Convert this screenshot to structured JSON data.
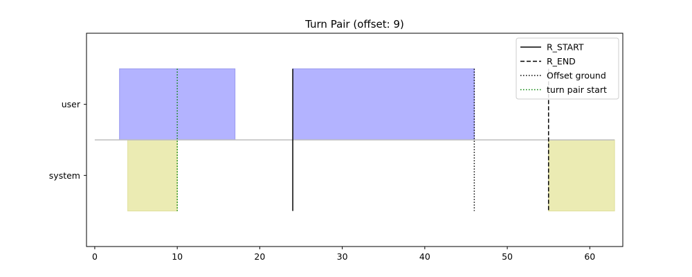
{
  "chart_data": {
    "type": "timeline",
    "title": "Turn Pair (offset: 9)",
    "xlabel": "",
    "ylabel": "",
    "xlim": [
      -1,
      64
    ],
    "xticks": [
      0,
      10,
      20,
      30,
      40,
      50,
      60
    ],
    "rows": [
      "user",
      "system"
    ],
    "baseline": 0,
    "segments": [
      {
        "row": "user",
        "start": 3,
        "end": 17,
        "color": "#b3b3ff",
        "edge": "#9999ee"
      },
      {
        "row": "user",
        "start": 24,
        "end": 46,
        "color": "#b3b3ff",
        "edge": "#9999ee"
      },
      {
        "row": "system",
        "start": 4,
        "end": 10,
        "color": "#ebebb3",
        "edge": "#dede99"
      },
      {
        "row": "system",
        "start": 55,
        "end": 63,
        "color": "#ebebb3",
        "edge": "#dede99"
      }
    ],
    "vlines": [
      {
        "name": "R_START",
        "x": 24,
        "ymin": -1,
        "ymax": 1,
        "color": "#000000",
        "style": "solid"
      },
      {
        "name": "R_END",
        "x": 55,
        "ymin": -1,
        "ymax": 1,
        "color": "#000000",
        "style": "dashed"
      },
      {
        "name": "Offset ground",
        "x": 46,
        "ymin": -1,
        "ymax": 1,
        "color": "#000000",
        "style": "dotted"
      },
      {
        "name": "turn pair start",
        "x": 10,
        "ymin": -1,
        "ymax": 1,
        "color": "#008000",
        "style": "dotted"
      }
    ],
    "legend": {
      "placement": "top-right",
      "entries": [
        {
          "label": "R_START",
          "color": "#000000",
          "style": "solid"
        },
        {
          "label": "R_END",
          "color": "#000000",
          "style": "dashed"
        },
        {
          "label": "Offset ground",
          "color": "#000000",
          "style": "dotted"
        },
        {
          "label": "turn pair start",
          "color": "#008000",
          "style": "dotted"
        }
      ]
    },
    "grid": false
  }
}
